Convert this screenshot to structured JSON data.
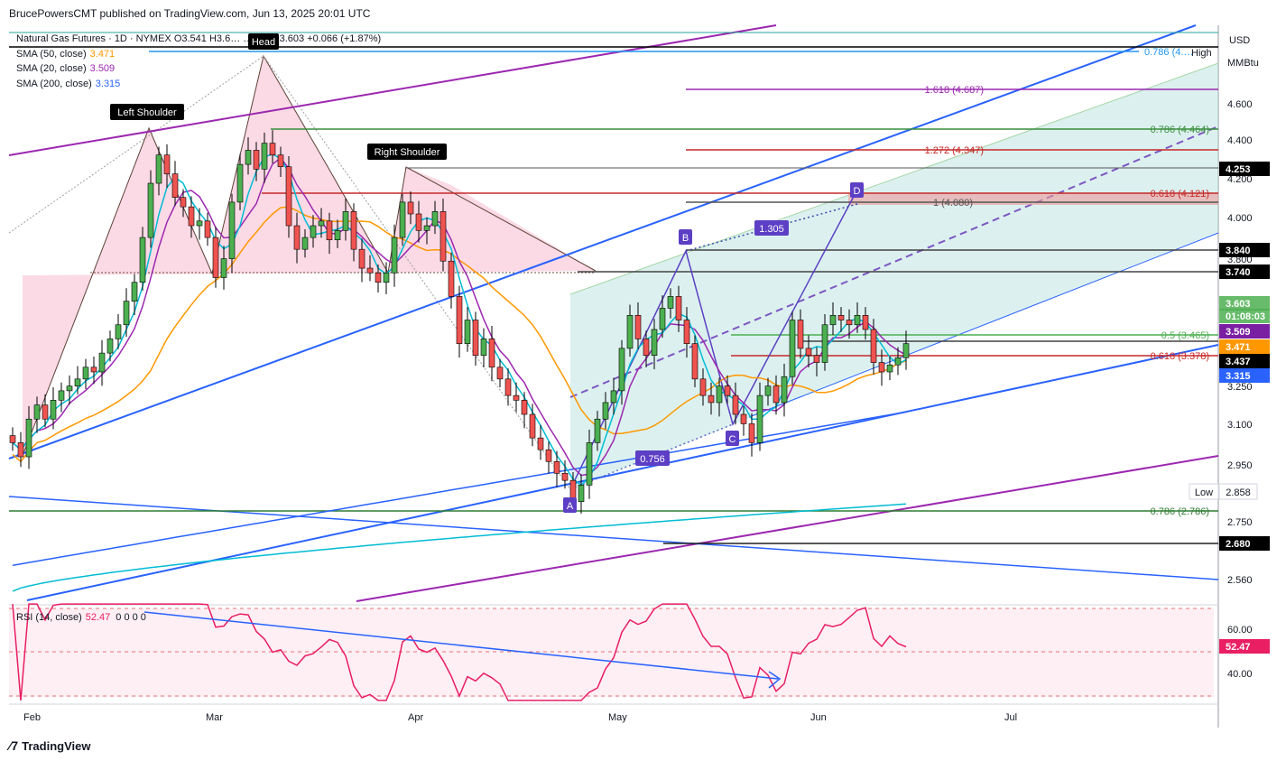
{
  "header": {
    "publish_line": "BrucePowersCMT published on TradingView.com, Jun 13, 2025 20:01 UTC"
  },
  "legend": {
    "symbol_line": "Natural Gas Futures · 1D · NYMEX  O3.541  H3.6…  …499  C3.603  +0.066 (+1.87%)",
    "sma50": {
      "label": "SMA (50, close)",
      "value": "3.471"
    },
    "sma20": {
      "label": "SMA (20, close)",
      "value": "3.509"
    },
    "sma200": {
      "label": "SMA (200, close)",
      "value": "3.315"
    },
    "rsi": {
      "label": "RSI (14, close)",
      "value": "52.47",
      "extra": "0  0  0  0"
    }
  },
  "price_axis": {
    "currency": "USD",
    "unit": "MMBtu",
    "ticks": [
      "4.600",
      "4.400",
      "4.200",
      "4.000",
      "3.800",
      "3.250",
      "3.100",
      "2.950",
      "2.750",
      "2.560"
    ],
    "rsi_ticks": [
      "60.00",
      "40.00"
    ]
  },
  "time_axis": {
    "labels": [
      "Feb",
      "Mar",
      "Apr",
      "May",
      "Jun",
      "Jul"
    ]
  },
  "price_tags": [
    {
      "text": "4.253",
      "kind": "dark"
    },
    {
      "text": "3.840",
      "kind": "dark"
    },
    {
      "text": "3.740",
      "kind": "dark"
    },
    {
      "text": "3.603",
      "kind": "teal"
    },
    {
      "text": "01:08:03",
      "kind": "teal"
    },
    {
      "text": "3.509",
      "kind": "purple"
    },
    {
      "text": "3.471",
      "kind": "orange"
    },
    {
      "text": "3.437",
      "kind": "dark"
    },
    {
      "text": "3.315",
      "kind": "blue"
    },
    {
      "text": "2.680",
      "kind": "dark"
    },
    {
      "text": "52.47",
      "kind": "pink"
    }
  ],
  "axis_markers": {
    "high": "High",
    "low": "Low",
    "low_value": "2.858"
  },
  "fib_labels": [
    {
      "text": "0.786 (4.…",
      "color": "#2196f3"
    },
    {
      "text": "1.618 (4.687)",
      "color": "#9c27b0"
    },
    {
      "text": "0.786 (4.464)",
      "color": "#388e3c"
    },
    {
      "text": "1.272 (4.347)",
      "color": "#c62828"
    },
    {
      "text": "0.618 (4.121)",
      "color": "#c62828"
    },
    {
      "text": "1 (4.080)",
      "color": "#555555"
    },
    {
      "text": "0.5 (3.465)",
      "color": "#4caf50"
    },
    {
      "text": "0.618 (3.378)",
      "color": "#c62828"
    },
    {
      "text": "0.786 (2.786)",
      "color": "#2e7d32"
    }
  ],
  "pattern_labels": {
    "left_shoulder": "Left Shoulder",
    "head": "Head",
    "right_shoulder": "Right Shoulder"
  },
  "abcd_labels": {
    "a": "A",
    "b": "B",
    "c": "C",
    "d": "D",
    "ratio_bc": "0.756",
    "ratio_cd": "1.305"
  },
  "footer": {
    "brand": "TradingView"
  },
  "colors": {
    "up": "#26a69a",
    "up_body": "#4caf50",
    "down": "#ef5350",
    "sma50": "#ff9800",
    "sma20": "#9c27b0",
    "sma200": "#2962ff",
    "teal_ma": "#00bcd4",
    "rsi": "#e91e63"
  },
  "chart_data": {
    "type": "candlestick",
    "symbol": "Natural Gas Futures",
    "timeframe": "1D",
    "exchange": "NYMEX",
    "last": {
      "open": 3.541,
      "close": 3.603,
      "change": 0.066,
      "change_pct": 1.87
    },
    "y_range": [
      2.5,
      4.95
    ],
    "x_labels": [
      "Feb",
      "Mar",
      "Apr",
      "May",
      "Jun",
      "Jul"
    ],
    "close_series": [
      3.18,
      3.12,
      3.28,
      3.34,
      3.28,
      3.36,
      3.4,
      3.42,
      3.45,
      3.5,
      3.48,
      3.56,
      3.62,
      3.68,
      3.78,
      3.86,
      4.05,
      4.28,
      4.4,
      4.32,
      4.22,
      4.18,
      4.1,
      4.12,
      4.05,
      3.88,
      3.96,
      4.2,
      4.36,
      4.42,
      4.34,
      4.45,
      4.4,
      4.35,
      4.1,
      4.0,
      4.05,
      4.1,
      4.12,
      4.04,
      4.08,
      4.16,
      4.0,
      3.92,
      3.9,
      3.86,
      3.9,
      4.05,
      4.2,
      4.15,
      4.08,
      4.1,
      4.16,
      3.95,
      3.8,
      3.6,
      3.7,
      3.55,
      3.62,
      3.5,
      3.45,
      3.38,
      3.36,
      3.3,
      3.2,
      3.15,
      3.1,
      3.05,
      3.02,
      2.93,
      3.0,
      3.18,
      3.28,
      3.35,
      3.4,
      3.58,
      3.72,
      3.62,
      3.55,
      3.66,
      3.75,
      3.8,
      3.7,
      3.6,
      3.45,
      3.38,
      3.35,
      3.42,
      3.38,
      3.3,
      3.26,
      3.18,
      3.38,
      3.42,
      3.35,
      3.46,
      3.7,
      3.58,
      3.55,
      3.52,
      3.68,
      3.72,
      3.7,
      3.68,
      3.72,
      3.66,
      3.52,
      3.48,
      3.51,
      3.54,
      3.6
    ],
    "sma": [
      {
        "name": "SMA (50, close)",
        "last": 3.471
      },
      {
        "name": "SMA (20, close)",
        "last": 3.509
      },
      {
        "name": "SMA (200, close)",
        "last": 3.315
      }
    ],
    "rsi": {
      "name": "RSI (14, close)",
      "last": 52.47,
      "levels": [
        70,
        30
      ]
    },
    "levels": [
      4.253,
      3.84,
      3.74,
      3.437,
      2.68
    ],
    "fibonacci": [
      {
        "ratio": 0.786,
        "price": 4.464
      },
      {
        "ratio": 1.618,
        "price": 4.687
      },
      {
        "ratio": 1.272,
        "price": 4.347
      },
      {
        "ratio": 0.618,
        "price": 4.121
      },
      {
        "ratio": 1,
        "price": 4.08
      },
      {
        "ratio": 0.5,
        "price": 3.465
      },
      {
        "ratio": 0.618,
        "price": 3.378
      },
      {
        "ratio": 0.786,
        "price": 2.786
      }
    ],
    "low": 2.858
  }
}
